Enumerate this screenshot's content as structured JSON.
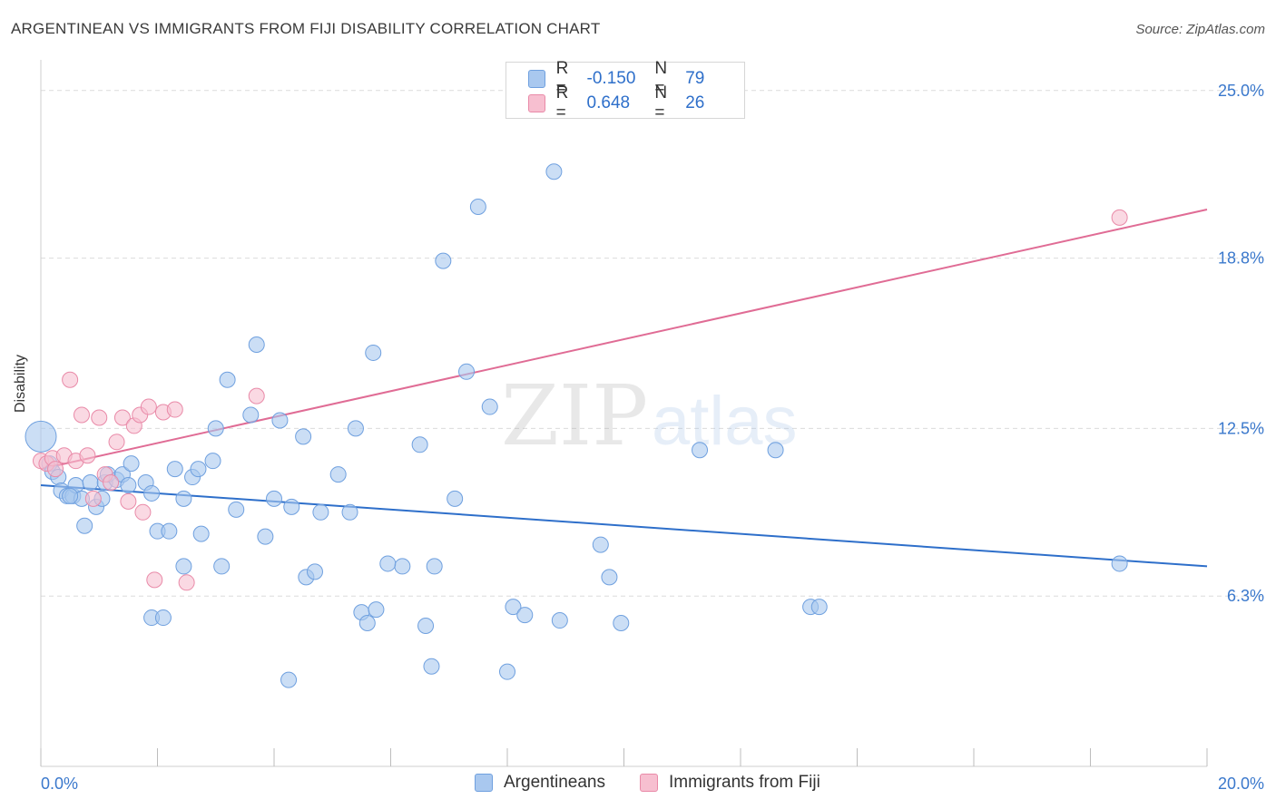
{
  "header": {
    "title": "ARGENTINEAN VS IMMIGRANTS FROM FIJI DISABILITY CORRELATION CHART",
    "source": "Source: ZipAtlas.com"
  },
  "legend": {
    "rows": [
      {
        "r_label": "R =",
        "r_value": "-0.150",
        "n_label": "N =",
        "n_value": "79"
      },
      {
        "r_label": "R =",
        "r_value": "0.648",
        "n_label": "N =",
        "n_value": "26"
      }
    ]
  },
  "colors": {
    "blue_fill": "#a9c8ef",
    "blue_stroke": "#6fa0df",
    "blue_line": "#2e6fca",
    "pink_fill": "#f7bfd0",
    "pink_stroke": "#e98aa8",
    "pink_line": "#e06c95",
    "tick_text": "#3a78cc",
    "grid": "#dcdcdc"
  },
  "watermark": {
    "zip": "ZIP",
    "atlas": "atlas"
  },
  "chart_data": {
    "type": "scatter",
    "title": "ARGENTINEAN VS IMMIGRANTS FROM FIJI DISABILITY CORRELATION CHART",
    "xlabel": "",
    "ylabel": "Disability",
    "xlim": [
      0,
      20
    ],
    "ylim": [
      0,
      26
    ],
    "x_tick_labels": [
      "0.0%",
      "20.0%"
    ],
    "y_ticks": [
      6.3,
      12.5,
      18.8,
      25.0
    ],
    "y_tick_labels": [
      "6.3%",
      "12.5%",
      "18.8%",
      "25.0%"
    ],
    "grid": true,
    "legend_position": "top-center",
    "series": [
      {
        "name": "Argentineans",
        "color": "#a9c8ef",
        "trend": {
          "x": [
            0,
            20
          ],
          "y": [
            10.4,
            7.4
          ]
        },
        "points": [
          [
            0.0,
            12.2
          ],
          [
            0.15,
            11.2
          ],
          [
            0.2,
            10.9
          ],
          [
            0.3,
            10.7
          ],
          [
            0.35,
            10.2
          ],
          [
            0.45,
            10.0
          ],
          [
            0.55,
            10.0
          ],
          [
            0.6,
            10.4
          ],
          [
            0.7,
            9.9
          ],
          [
            0.75,
            8.9
          ],
          [
            0.85,
            10.5
          ],
          [
            0.95,
            9.6
          ],
          [
            1.05,
            9.9
          ],
          [
            1.1,
            10.5
          ],
          [
            1.15,
            10.8
          ],
          [
            1.3,
            10.6
          ],
          [
            1.4,
            10.8
          ],
          [
            1.5,
            10.4
          ],
          [
            1.55,
            11.2
          ],
          [
            1.8,
            10.5
          ],
          [
            1.9,
            10.1
          ],
          [
            2.0,
            8.7
          ],
          [
            2.2,
            8.7
          ],
          [
            2.3,
            11.0
          ],
          [
            2.45,
            9.9
          ],
          [
            2.6,
            10.7
          ],
          [
            2.7,
            11.0
          ],
          [
            2.75,
            8.6
          ],
          [
            2.95,
            11.3
          ],
          [
            3.0,
            12.5
          ],
          [
            3.2,
            14.3
          ],
          [
            3.35,
            9.5
          ],
          [
            3.6,
            13.0
          ],
          [
            3.7,
            15.6
          ],
          [
            3.85,
            8.5
          ],
          [
            4.0,
            9.9
          ],
          [
            4.1,
            12.8
          ],
          [
            4.3,
            9.6
          ],
          [
            4.5,
            12.2
          ],
          [
            4.55,
            7.0
          ],
          [
            4.7,
            7.2
          ],
          [
            4.8,
            9.4
          ],
          [
            5.1,
            10.8
          ],
          [
            5.3,
            9.4
          ],
          [
            5.4,
            12.5
          ],
          [
            5.5,
            5.7
          ],
          [
            5.6,
            5.3
          ],
          [
            5.7,
            15.3
          ],
          [
            5.75,
            5.8
          ],
          [
            6.2,
            7.4
          ],
          [
            6.5,
            11.9
          ],
          [
            6.6,
            5.2
          ],
          [
            6.7,
            3.7
          ],
          [
            6.75,
            7.4
          ],
          [
            6.9,
            18.7
          ],
          [
            7.1,
            9.9
          ],
          [
            7.3,
            14.6
          ],
          [
            7.5,
            20.7
          ],
          [
            7.7,
            13.3
          ],
          [
            8.0,
            3.5
          ],
          [
            8.1,
            5.9
          ],
          [
            8.3,
            5.6
          ],
          [
            8.8,
            22.0
          ],
          [
            8.9,
            5.4
          ],
          [
            9.6,
            8.2
          ],
          [
            9.75,
            7.0
          ],
          [
            9.95,
            5.3
          ],
          [
            11.3,
            11.7
          ],
          [
            12.6,
            11.7
          ],
          [
            13.2,
            5.9
          ],
          [
            13.35,
            5.9
          ],
          [
            18.5,
            7.5
          ],
          [
            4.25,
            3.2
          ],
          [
            5.95,
            7.5
          ],
          [
            1.9,
            5.5
          ],
          [
            2.1,
            5.5
          ],
          [
            3.1,
            7.4
          ],
          [
            2.45,
            7.4
          ],
          [
            0.5,
            10.0
          ]
        ]
      },
      {
        "name": "Immigrants from Fiji",
        "color": "#f7bfd0",
        "trend": {
          "x": [
            0,
            20
          ],
          "y": [
            11.0,
            20.6
          ]
        },
        "points": [
          [
            0.0,
            11.3
          ],
          [
            0.1,
            11.2
          ],
          [
            0.2,
            11.4
          ],
          [
            0.25,
            11.0
          ],
          [
            0.4,
            11.5
          ],
          [
            0.5,
            14.3
          ],
          [
            0.6,
            11.3
          ],
          [
            0.7,
            13.0
          ],
          [
            0.8,
            11.5
          ],
          [
            0.9,
            9.9
          ],
          [
            1.0,
            12.9
          ],
          [
            1.1,
            10.8
          ],
          [
            1.2,
            10.5
          ],
          [
            1.3,
            12.0
          ],
          [
            1.4,
            12.9
          ],
          [
            1.5,
            9.8
          ],
          [
            1.6,
            12.6
          ],
          [
            1.7,
            13.0
          ],
          [
            1.75,
            9.4
          ],
          [
            1.85,
            13.3
          ],
          [
            1.95,
            6.9
          ],
          [
            2.1,
            13.1
          ],
          [
            2.3,
            13.2
          ],
          [
            2.5,
            6.8
          ],
          [
            3.7,
            13.7
          ],
          [
            18.5,
            20.3
          ]
        ]
      }
    ]
  },
  "bottom_legend": [
    {
      "label": "Argentineans"
    },
    {
      "label": "Immigrants from Fiji"
    }
  ]
}
